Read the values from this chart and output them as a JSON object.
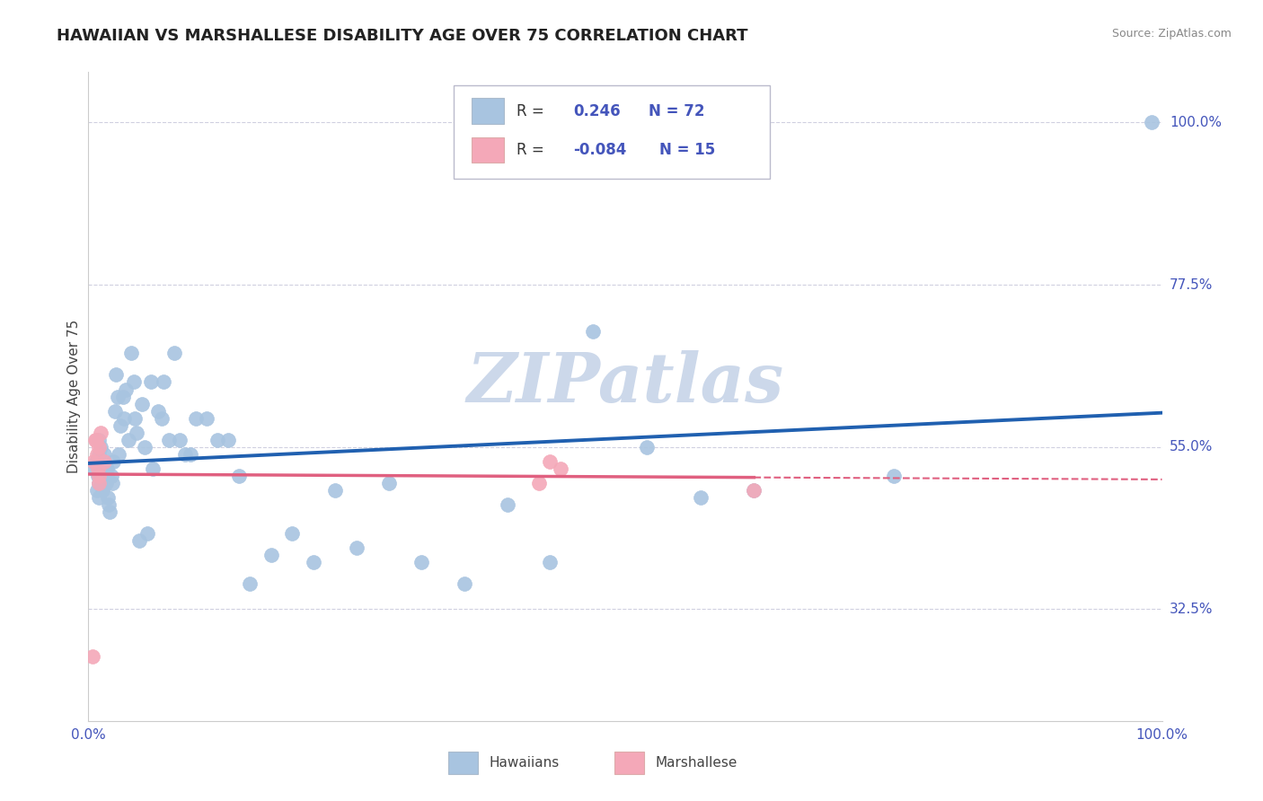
{
  "title": "HAWAIIAN VS MARSHALLESE DISABILITY AGE OVER 75 CORRELATION CHART",
  "source": "Source: ZipAtlas.com",
  "ylabel": "Disability Age Over 75",
  "xlim": [
    0.0,
    1.0
  ],
  "ylim": [
    0.17,
    1.07
  ],
  "ytick_labels": [
    "32.5%",
    "55.0%",
    "77.5%",
    "100.0%"
  ],
  "ytick_values": [
    0.325,
    0.55,
    0.775,
    1.0
  ],
  "hawaiians_R": 0.246,
  "hawaiians_N": 72,
  "marshallese_R": -0.084,
  "marshallese_N": 15,
  "hawaiian_color": "#a8c4e0",
  "marshallese_color": "#f4a8b8",
  "hawaiian_line_color": "#2060b0",
  "marshallese_line_color": "#e06080",
  "watermark": "ZIPatlas",
  "watermark_color": "#ccd8ea",
  "hawaiians_x": [
    0.005,
    0.007,
    0.008,
    0.009,
    0.01,
    0.01,
    0.01,
    0.01,
    0.011,
    0.012,
    0.012,
    0.013,
    0.014,
    0.015,
    0.015,
    0.016,
    0.017,
    0.018,
    0.019,
    0.02,
    0.021,
    0.022,
    0.023,
    0.025,
    0.026,
    0.027,
    0.028,
    0.03,
    0.032,
    0.033,
    0.035,
    0.037,
    0.04,
    0.042,
    0.043,
    0.045,
    0.047,
    0.05,
    0.052,
    0.055,
    0.058,
    0.06,
    0.065,
    0.068,
    0.07,
    0.075,
    0.08,
    0.085,
    0.09,
    0.095,
    0.1,
    0.11,
    0.12,
    0.13,
    0.14,
    0.15,
    0.17,
    0.19,
    0.21,
    0.23,
    0.25,
    0.28,
    0.31,
    0.35,
    0.39,
    0.43,
    0.47,
    0.52,
    0.57,
    0.62,
    0.75,
    0.99
  ],
  "hawaiians_y": [
    0.52,
    0.53,
    0.49,
    0.51,
    0.54,
    0.56,
    0.5,
    0.48,
    0.55,
    0.51,
    0.5,
    0.49,
    0.52,
    0.54,
    0.51,
    0.5,
    0.52,
    0.48,
    0.47,
    0.46,
    0.51,
    0.5,
    0.53,
    0.6,
    0.65,
    0.62,
    0.54,
    0.58,
    0.62,
    0.59,
    0.63,
    0.56,
    0.68,
    0.64,
    0.59,
    0.57,
    0.42,
    0.61,
    0.55,
    0.43,
    0.64,
    0.52,
    0.6,
    0.59,
    0.64,
    0.56,
    0.68,
    0.56,
    0.54,
    0.54,
    0.59,
    0.59,
    0.56,
    0.56,
    0.51,
    0.36,
    0.4,
    0.43,
    0.39,
    0.49,
    0.41,
    0.5,
    0.39,
    0.36,
    0.47,
    0.39,
    0.71,
    0.55,
    0.48,
    0.49,
    0.51,
    1.0
  ],
  "marshallese_x": [
    0.004,
    0.005,
    0.006,
    0.007,
    0.008,
    0.009,
    0.01,
    0.01,
    0.01,
    0.011,
    0.015,
    0.42,
    0.43,
    0.44,
    0.62
  ],
  "marshallese_y": [
    0.26,
    0.53,
    0.56,
    0.56,
    0.54,
    0.52,
    0.51,
    0.55,
    0.5,
    0.57,
    0.53,
    0.5,
    0.53,
    0.52,
    0.49
  ],
  "grid_color": "#d0d0e0",
  "background_color": "#ffffff",
  "title_fontsize": 13,
  "axis_label_fontsize": 11,
  "tick_fontsize": 11,
  "legend_fontsize": 12
}
